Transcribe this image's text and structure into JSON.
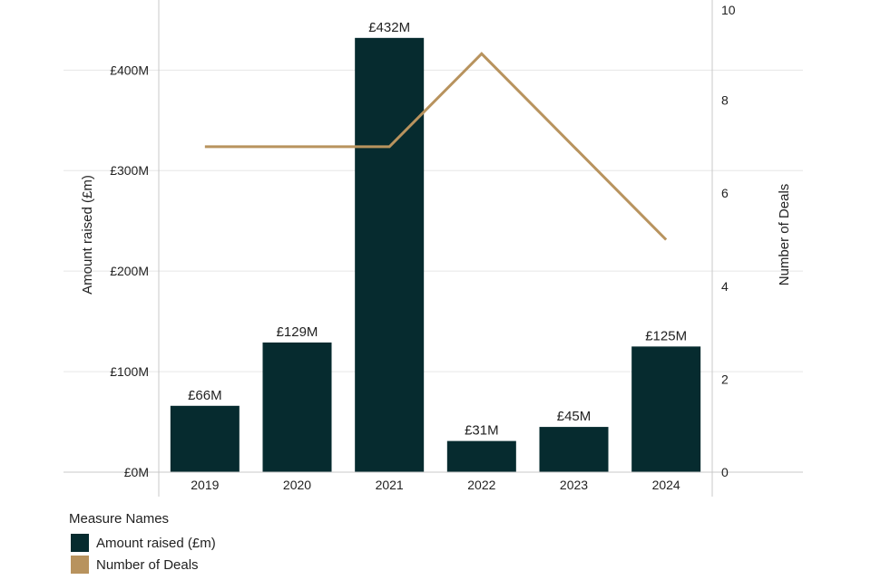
{
  "chart_data": {
    "type": "bar",
    "categories": [
      "2019",
      "2020",
      "2021",
      "2022",
      "2023",
      "2024"
    ],
    "series": [
      {
        "name": "Amount raised (£m)",
        "type": "bar",
        "axis": "left",
        "values": [
          66,
          129,
          432,
          31,
          45,
          125
        ],
        "data_labels": [
          "£66M",
          "£129M",
          "£432M",
          "£31M",
          "£45M",
          "£125M"
        ]
      },
      {
        "name": "Number of Deals",
        "type": "line",
        "axis": "right",
        "values": [
          7,
          7,
          7,
          9,
          7,
          5
        ]
      }
    ],
    "title": "",
    "xlabel": "",
    "ylabel": "Amount raised (£m)",
    "y2label": "Number of Deals",
    "ylim": [
      0,
      462.5
    ],
    "y2lim": [
      0,
      10
    ],
    "yticks": [
      {
        "value": 0,
        "label": "£0M"
      },
      {
        "value": 100,
        "label": "£100M"
      },
      {
        "value": 200,
        "label": "£200M"
      },
      {
        "value": 300,
        "label": "£300M"
      },
      {
        "value": 400,
        "label": "£400M"
      }
    ],
    "y2ticks": [
      {
        "value": 0,
        "label": "0"
      },
      {
        "value": 2,
        "label": "2"
      },
      {
        "value": 4,
        "label": "4"
      },
      {
        "value": 6,
        "label": "6"
      },
      {
        "value": 8,
        "label": "8"
      },
      {
        "value": 10,
        "label": "10"
      }
    ],
    "grid": true,
    "legend_position": "bottom-left",
    "legend_title": "Measure Names"
  },
  "colors": {
    "bar": "#062b2f",
    "line": "#b8935e",
    "grid": "#e6e6e6",
    "axis": "#c8c8c8"
  },
  "legend": {
    "title": "Measure Names",
    "items": [
      {
        "label": "Amount raised (£m)"
      },
      {
        "label": "Number of Deals"
      }
    ]
  }
}
